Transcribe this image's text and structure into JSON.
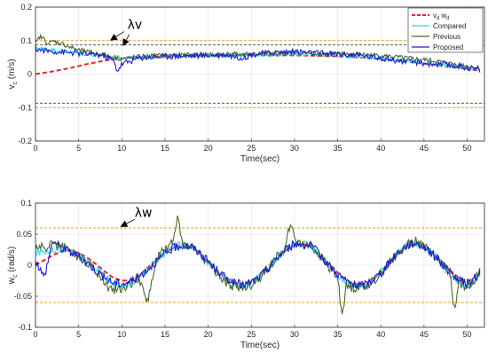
{
  "chart_data": [
    {
      "type": "line",
      "xlabel": "Time(sec)",
      "ylabel": "v",
      "ylabel_sub": "c",
      "ylabel_unit": " (m/s)",
      "xlim": [
        0,
        52
      ],
      "ylim": [
        -0.2,
        0.2
      ],
      "xticks": [
        "0",
        "5",
        "10",
        "15",
        "20",
        "25",
        "30",
        "35",
        "40",
        "45",
        "50"
      ],
      "yticks": [
        "0.2",
        "0.1",
        "0",
        "-0.1",
        "-0.2"
      ],
      "grid": true,
      "legend_position": "top-right",
      "legend": [
        "v",
        "d",
        "w",
        "d",
        "Compared",
        "Previous",
        "Proposed"
      ],
      "bounds": [
        {
          "y": 0.1,
          "color": "#e8a020",
          "style": "dashed"
        },
        {
          "y": 0.087,
          "color": "#404040",
          "style": "dashed"
        },
        {
          "y": -0.087,
          "color": "#404040",
          "style": "dashed"
        },
        {
          "y": -0.1,
          "color": "#e8a020",
          "style": "dashed"
        }
      ],
      "annotation": {
        "text": "λv",
        "x": 11.5,
        "y": 0.135
      },
      "series": [
        {
          "name": "v_d w_d",
          "color": "#e8262b",
          "style": "dashed",
          "x": [
            0,
            1,
            2,
            3,
            4,
            5,
            6,
            7,
            8,
            9,
            10,
            12,
            14,
            16,
            18,
            20,
            22,
            25,
            28,
            30,
            32,
            35,
            38,
            40,
            42,
            44,
            46,
            48,
            50,
            51.5
          ],
          "y": [
            0.0,
            0.004,
            0.008,
            0.013,
            0.018,
            0.024,
            0.03,
            0.035,
            0.04,
            0.044,
            0.047,
            0.05,
            0.052,
            0.053,
            0.054,
            0.055,
            0.056,
            0.056,
            0.056,
            0.056,
            0.055,
            0.053,
            0.049,
            0.045,
            0.04,
            0.034,
            0.028,
            0.022,
            0.015,
            0.01
          ]
        },
        {
          "name": "Compared",
          "color": "#24d8e8",
          "style": "solid",
          "x": [
            0,
            1,
            2,
            3,
            4,
            5,
            6,
            7,
            8,
            9,
            10,
            12,
            14,
            16,
            18,
            20,
            22,
            25,
            28,
            30,
            32,
            35,
            38,
            40,
            42,
            44,
            46,
            48,
            50,
            51.5
          ],
          "y": [
            0.08,
            0.075,
            0.072,
            0.068,
            0.065,
            0.062,
            0.06,
            0.058,
            0.055,
            0.05,
            0.047,
            0.05,
            0.053,
            0.055,
            0.055,
            0.056,
            0.057,
            0.058,
            0.058,
            0.06,
            0.058,
            0.056,
            0.052,
            0.048,
            0.042,
            0.036,
            0.03,
            0.025,
            0.018,
            0.012
          ]
        },
        {
          "name": "Previous",
          "color": "#4a6b2a",
          "style": "solid",
          "x": [
            0,
            0.5,
            1,
            1.5,
            2,
            3,
            4,
            5,
            6,
            7,
            8,
            9,
            10,
            12,
            14,
            16,
            18,
            20,
            22,
            25,
            28,
            30,
            32,
            35,
            38,
            40,
            42,
            44,
            46,
            48,
            50,
            51.5
          ],
          "y": [
            0.09,
            0.112,
            0.105,
            0.09,
            0.098,
            0.092,
            0.08,
            0.072,
            0.066,
            0.062,
            0.058,
            0.05,
            0.045,
            0.052,
            0.055,
            0.056,
            0.057,
            0.058,
            0.059,
            0.06,
            0.062,
            0.064,
            0.062,
            0.06,
            0.058,
            0.055,
            0.05,
            0.045,
            0.04,
            0.032,
            0.024,
            0.018
          ]
        },
        {
          "name": "Proposed",
          "color": "#1a1adb",
          "style": "solid",
          "x": [
            0,
            1,
            2,
            3,
            4,
            5,
            6,
            7,
            8,
            9,
            9.5,
            10,
            12,
            14,
            16,
            18,
            20,
            22,
            24,
            25,
            28,
            30,
            32,
            35,
            38,
            40,
            42,
            44,
            46,
            48,
            50,
            51.5
          ],
          "y": [
            0.075,
            0.07,
            0.068,
            0.066,
            0.064,
            0.062,
            0.06,
            0.058,
            0.054,
            0.04,
            0.01,
            0.03,
            0.048,
            0.052,
            0.054,
            0.055,
            0.056,
            0.058,
            0.048,
            0.058,
            0.065,
            0.068,
            0.063,
            0.06,
            0.055,
            0.048,
            0.04,
            0.035,
            0.03,
            0.026,
            0.02,
            0.012
          ]
        }
      ]
    },
    {
      "type": "line",
      "xlabel": "Time(sec)",
      "ylabel": "w",
      "ylabel_sub": "c",
      "ylabel_unit": " (rad/s)",
      "xlim": [
        0,
        52
      ],
      "ylim": [
        -0.1,
        0.1
      ],
      "xticks": [
        "0",
        "5",
        "10",
        "15",
        "20",
        "25",
        "30",
        "35",
        "40",
        "45",
        "50"
      ],
      "yticks": [
        "0.1",
        "0.05",
        "0",
        "-0.05",
        "-0.1"
      ],
      "grid": true,
      "bounds": [
        {
          "y": 0.06,
          "color": "#e8a020",
          "style": "dashed"
        },
        {
          "y": -0.06,
          "color": "#e8a020",
          "style": "dashed"
        }
      ],
      "annotation": {
        "text": "λw",
        "x": 12.5,
        "y": 0.078
      },
      "series": [
        {
          "name": "v_d w_d",
          "color": "#e8262b",
          "style": "dashed",
          "x": [
            0,
            1,
            2,
            3,
            4,
            5,
            6,
            7,
            8,
            9,
            10,
            11,
            12,
            13,
            14,
            15,
            16,
            17,
            18,
            19,
            20,
            21,
            22,
            23,
            24,
            25,
            26,
            27,
            28,
            29,
            30,
            31,
            32,
            33,
            34,
            35,
            36,
            37,
            38,
            39,
            40,
            41,
            42,
            43,
            44,
            45,
            46,
            47,
            48,
            49,
            50,
            51,
            51.5
          ],
          "y": [
            0.0,
            0.008,
            0.016,
            0.022,
            0.024,
            0.02,
            0.012,
            0.002,
            -0.01,
            -0.02,
            -0.025,
            -0.024,
            -0.016,
            -0.004,
            0.008,
            0.02,
            0.028,
            0.032,
            0.03,
            0.02,
            0.006,
            -0.008,
            -0.02,
            -0.028,
            -0.03,
            -0.026,
            -0.016,
            -0.002,
            0.012,
            0.024,
            0.032,
            0.034,
            0.028,
            0.016,
            0.002,
            -0.012,
            -0.024,
            -0.03,
            -0.03,
            -0.024,
            -0.012,
            0.004,
            0.018,
            0.03,
            0.034,
            0.03,
            0.02,
            0.006,
            -0.008,
            -0.02,
            -0.026,
            -0.02,
            -0.012
          ]
        },
        {
          "name": "Compared",
          "color": "#24d8e8",
          "style": "solid",
          "x": [
            0,
            1,
            2,
            3,
            4,
            5,
            6,
            7,
            8,
            9,
            10,
            11,
            12,
            13,
            14,
            15,
            16,
            17,
            18,
            19,
            20,
            21,
            22,
            23,
            24,
            25,
            26,
            27,
            28,
            29,
            30,
            31,
            32,
            33,
            34,
            35,
            36,
            37,
            38,
            39,
            40,
            41,
            42,
            43,
            44,
            45,
            46,
            47,
            48,
            49,
            50,
            51,
            51.5
          ],
          "y": [
            0.02,
            0.022,
            0.025,
            0.026,
            0.022,
            0.016,
            0.006,
            -0.006,
            -0.018,
            -0.028,
            -0.034,
            -0.03,
            -0.02,
            -0.006,
            0.008,
            0.02,
            0.03,
            0.034,
            0.03,
            0.018,
            0.004,
            -0.01,
            -0.022,
            -0.03,
            -0.034,
            -0.03,
            -0.018,
            -0.004,
            0.012,
            0.026,
            0.034,
            0.036,
            0.03,
            0.016,
            0.0,
            -0.016,
            -0.028,
            -0.034,
            -0.034,
            -0.026,
            -0.012,
            0.004,
            0.02,
            0.032,
            0.036,
            0.03,
            0.018,
            0.002,
            -0.014,
            -0.026,
            -0.032,
            -0.022,
            -0.01
          ]
        },
        {
          "name": "Previous",
          "color": "#4a6b2a",
          "style": "solid",
          "x": [
            0,
            1,
            2,
            3,
            4,
            5,
            6,
            7,
            8,
            9,
            10,
            11,
            12,
            13,
            14,
            15,
            16,
            16.5,
            17,
            18,
            19,
            20,
            21,
            22,
            23,
            24,
            25,
            26,
            27,
            28,
            29,
            29.5,
            30,
            31,
            32,
            33,
            34,
            35,
            35.5,
            36,
            37,
            38,
            39,
            40,
            41,
            42,
            43,
            44,
            45,
            46,
            47,
            48,
            48.5,
            49,
            50,
            51,
            51.5
          ],
          "y": [
            0.03,
            0.028,
            0.034,
            0.03,
            0.024,
            0.014,
            0.004,
            -0.008,
            -0.03,
            -0.04,
            -0.036,
            -0.03,
            -0.02,
            -0.06,
            0.01,
            0.026,
            0.04,
            0.08,
            0.034,
            0.032,
            0.02,
            0.002,
            -0.012,
            -0.03,
            -0.034,
            -0.036,
            -0.032,
            -0.02,
            -0.004,
            0.014,
            0.03,
            0.07,
            0.04,
            0.036,
            0.03,
            0.014,
            -0.004,
            -0.02,
            -0.08,
            -0.034,
            -0.036,
            -0.034,
            -0.028,
            -0.014,
            0.004,
            0.022,
            0.034,
            0.04,
            0.032,
            0.02,
            0.004,
            -0.014,
            -0.072,
            -0.028,
            -0.034,
            -0.02,
            -0.01
          ]
        },
        {
          "name": "Proposed",
          "color": "#1a1adb",
          "style": "solid",
          "x": [
            0,
            1,
            2,
            3,
            4,
            5,
            6,
            7,
            8,
            9,
            10,
            11,
            12,
            13,
            14,
            15,
            16,
            17,
            18,
            19,
            20,
            21,
            22,
            23,
            24,
            25,
            26,
            27,
            28,
            29,
            30,
            31,
            32,
            33,
            34,
            35,
            36,
            37,
            38,
            39,
            40,
            41,
            42,
            43,
            44,
            45,
            46,
            47,
            48,
            49,
            50,
            51,
            51.5
          ],
          "y": [
            0.01,
            -0.02,
            0.04,
            0.028,
            0.022,
            0.014,
            0.004,
            -0.008,
            -0.02,
            -0.028,
            -0.03,
            -0.026,
            -0.018,
            -0.006,
            0.006,
            0.018,
            0.028,
            0.032,
            0.03,
            0.02,
            0.006,
            -0.008,
            -0.02,
            -0.028,
            -0.032,
            -0.028,
            -0.018,
            -0.004,
            0.012,
            0.026,
            0.034,
            0.034,
            0.03,
            0.016,
            0.0,
            -0.014,
            -0.026,
            -0.032,
            -0.032,
            -0.024,
            -0.012,
            0.004,
            0.02,
            0.032,
            0.036,
            0.03,
            0.018,
            0.004,
            -0.012,
            -0.024,
            -0.03,
            -0.02,
            -0.01
          ]
        }
      ]
    }
  ]
}
